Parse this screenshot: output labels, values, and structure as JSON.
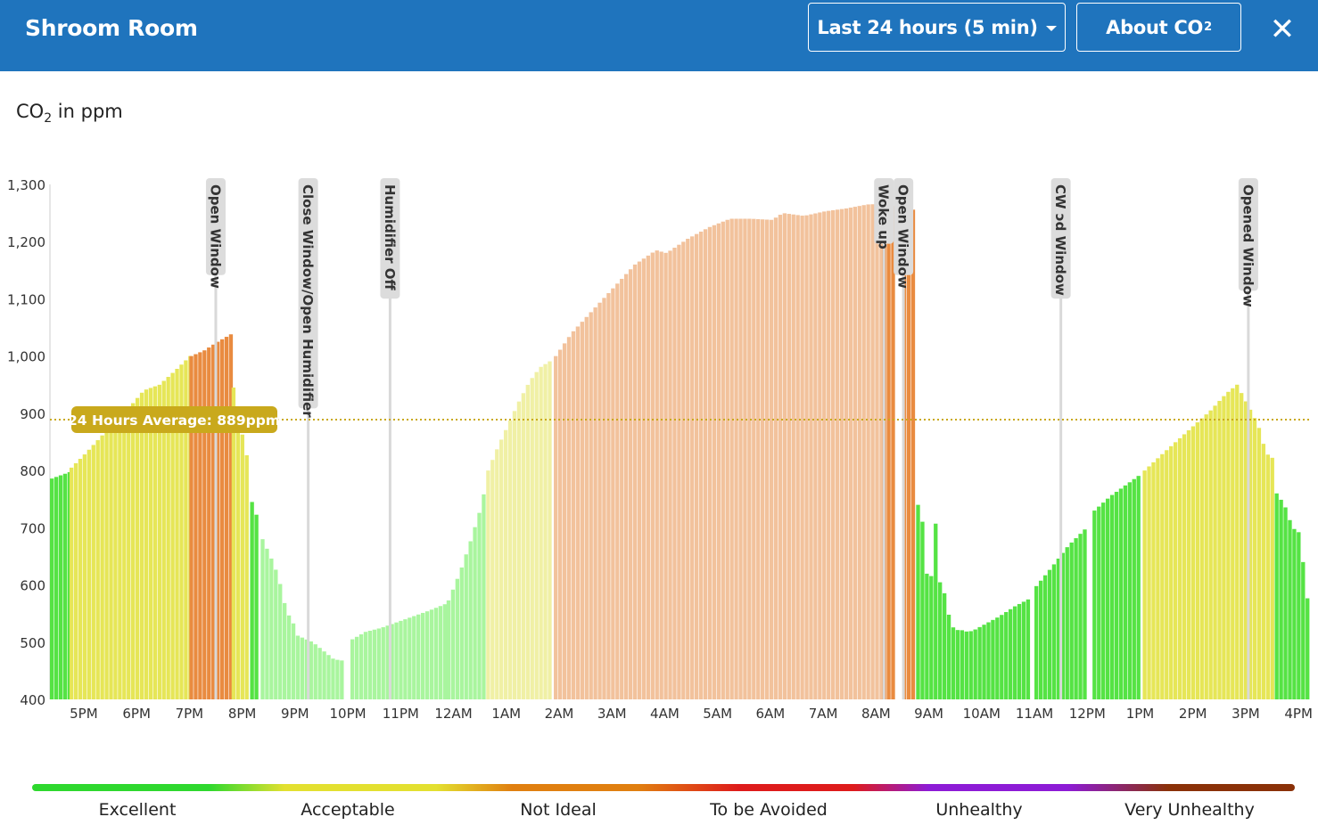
{
  "header": {
    "title": "Shroom Room",
    "range_label": "Last 24 hours (5 min)",
    "about_label": "About CO",
    "about_sub": "2",
    "close_symbol": "✕"
  },
  "unit_label": {
    "prefix": "CO",
    "sub": "2",
    "suffix": " in ppm"
  },
  "chart_data": {
    "type": "bar",
    "ylabel": "CO2 in ppm",
    "ylim": [
      400,
      1300
    ],
    "yticks": [
      400,
      500,
      600,
      700,
      800,
      900,
      1000,
      1100,
      1200,
      1300
    ],
    "ytick_labels": [
      "400",
      "500",
      "600",
      "700",
      "800",
      "900",
      "1,000",
      "1,100",
      "1,200",
      "1,300"
    ],
    "xlim": [
      16.36,
      40.2
    ],
    "xticks": [
      {
        "x": 17,
        "label": "5PM"
      },
      {
        "x": 18,
        "label": "6PM"
      },
      {
        "x": 19,
        "label": "7PM"
      },
      {
        "x": 20,
        "label": "8PM"
      },
      {
        "x": 21,
        "label": "9PM"
      },
      {
        "x": 22,
        "label": "10PM"
      },
      {
        "x": 23,
        "label": "11PM"
      },
      {
        "x": 24,
        "label": "12AM"
      },
      {
        "x": 25,
        "label": "1AM"
      },
      {
        "x": 26,
        "label": "2AM"
      },
      {
        "x": 27,
        "label": "3AM"
      },
      {
        "x": 28,
        "label": "4AM"
      },
      {
        "x": 29,
        "label": "5AM"
      },
      {
        "x": 30,
        "label": "6AM"
      },
      {
        "x": 31,
        "label": "7AM"
      },
      {
        "x": 32,
        "label": "8AM"
      },
      {
        "x": 33,
        "label": "9AM"
      },
      {
        "x": 34,
        "label": "10AM"
      },
      {
        "x": 35,
        "label": "11AM"
      },
      {
        "x": 36,
        "label": "12PM"
      },
      {
        "x": 37,
        "label": "1PM"
      },
      {
        "x": 38,
        "label": "2PM"
      },
      {
        "x": 39,
        "label": "3PM"
      },
      {
        "x": 40,
        "label": "4PM"
      }
    ],
    "average": {
      "value": 889,
      "label": "24 Hours Average: 889ppm",
      "color": "#c9a91c"
    },
    "colors": {
      "excellent": "#55e344",
      "excellent_faded": "#a9f59e",
      "acceptable": "#e6e657",
      "acceptable_faded": "#f0f0a5",
      "not_ideal": "#e98b40",
      "not_ideal_faded": "#f2c29c",
      "event_line": "#d9d9d9",
      "event_tag": "#dcdcdc"
    },
    "series": [
      {
        "style": "excellent",
        "points": [
          [
            16.36,
            786
          ],
          [
            16.72,
            798
          ]
        ]
      },
      {
        "style": "acceptable",
        "points": [
          [
            16.73,
            805
          ],
          [
            17.0,
            830
          ],
          [
            17.3,
            860
          ],
          [
            17.6,
            890
          ],
          [
            17.9,
            918
          ],
          [
            18.1,
            940
          ],
          [
            18.4,
            950
          ],
          [
            18.7,
            975
          ],
          [
            18.98,
            1000
          ]
        ]
      },
      {
        "style": "not_ideal",
        "points": [
          [
            19.0,
            1000
          ],
          [
            19.25,
            1010
          ],
          [
            19.5,
            1025
          ],
          [
            19.75,
            1038
          ]
        ]
      },
      {
        "style": "acceptable",
        "points": [
          [
            19.8,
            945
          ],
          [
            19.95,
            870
          ],
          [
            20.1,
            805
          ]
        ]
      },
      {
        "style": "excellent",
        "points": [
          [
            20.15,
            745
          ],
          [
            20.3,
            705
          ]
        ]
      },
      {
        "style": "excellent_faded",
        "points": [
          [
            20.35,
            680
          ],
          [
            20.5,
            650
          ],
          [
            20.65,
            615
          ],
          [
            20.8,
            555
          ],
          [
            20.95,
            530
          ],
          [
            21.0,
            512
          ],
          [
            21.3,
            500
          ],
          [
            21.5,
            485
          ],
          [
            21.7,
            470
          ],
          [
            21.85,
            468
          ]
        ]
      },
      {
        "style": "excellent_faded",
        "points": [
          [
            22.05,
            505
          ],
          [
            22.3,
            518
          ],
          [
            22.6,
            525
          ],
          [
            22.9,
            535
          ],
          [
            23.2,
            545
          ],
          [
            23.5,
            555
          ],
          [
            23.82,
            567
          ]
        ]
      },
      {
        "style": "excellent_faded",
        "points": [
          [
            23.87,
            573
          ],
          [
            24.1,
            625
          ],
          [
            24.3,
            680
          ],
          [
            24.5,
            740
          ],
          [
            24.58,
            780
          ]
        ]
      },
      {
        "style": "acceptable_faded",
        "points": [
          [
            24.62,
            800
          ],
          [
            24.8,
            840
          ],
          [
            25.0,
            880
          ],
          [
            25.2,
            920
          ],
          [
            25.4,
            955
          ],
          [
            25.6,
            980
          ],
          [
            25.86,
            995
          ]
        ]
      },
      {
        "style": "not_ideal_faded",
        "points": [
          [
            25.9,
            1000
          ],
          [
            26.2,
            1040
          ],
          [
            26.6,
            1080
          ],
          [
            27.0,
            1120
          ],
          [
            27.4,
            1160
          ],
          [
            27.8,
            1185
          ],
          [
            28.0,
            1180
          ],
          [
            28.4,
            1205
          ],
          [
            28.8,
            1225
          ],
          [
            29.2,
            1240
          ],
          [
            29.6,
            1240
          ],
          [
            30.0,
            1238
          ],
          [
            30.2,
            1250
          ],
          [
            30.6,
            1245
          ],
          [
            31.0,
            1253
          ],
          [
            31.4,
            1258
          ],
          [
            31.8,
            1265
          ],
          [
            32.1,
            1266
          ]
        ]
      },
      {
        "style": "not_ideal",
        "points": [
          [
            32.12,
            1265
          ],
          [
            32.3,
            1262
          ]
        ]
      },
      {
        "style": "not_ideal",
        "points": [
          [
            32.5,
            1260
          ],
          [
            32.7,
            1255
          ]
        ]
      },
      {
        "style": "excellent",
        "points": [
          [
            32.76,
            740
          ],
          [
            32.82,
            738
          ],
          [
            32.92,
            620
          ],
          [
            33.02,
            615
          ],
          [
            33.08,
            730
          ],
          [
            33.15,
            610
          ],
          [
            33.25,
            590
          ],
          [
            33.35,
            545
          ],
          [
            33.45,
            520
          ],
          [
            33.55,
            522
          ],
          [
            33.7,
            518
          ],
          [
            33.8,
            520
          ],
          [
            34.0,
            530
          ],
          [
            34.3,
            545
          ],
          [
            34.6,
            563
          ],
          [
            34.85,
            575
          ]
        ]
      },
      {
        "style": "excellent",
        "points": [
          [
            35.0,
            598
          ],
          [
            35.3,
            632
          ],
          [
            35.6,
            668
          ],
          [
            35.95,
            700
          ]
        ]
      },
      {
        "style": "excellent",
        "points": [
          [
            36.1,
            730
          ],
          [
            36.4,
            755
          ],
          [
            36.7,
            775
          ],
          [
            37.0,
            795
          ]
        ]
      },
      {
        "style": "acceptable",
        "points": [
          [
            37.05,
            800
          ],
          [
            37.4,
            830
          ],
          [
            37.7,
            855
          ],
          [
            38.0,
            880
          ],
          [
            38.3,
            905
          ],
          [
            38.6,
            935
          ],
          [
            38.8,
            950
          ],
          [
            39.0,
            915
          ],
          [
            39.2,
            880
          ],
          [
            39.35,
            830
          ],
          [
            39.5,
            820
          ]
        ]
      },
      {
        "style": "excellent",
        "points": [
          [
            39.55,
            760
          ],
          [
            39.7,
            740
          ],
          [
            39.85,
            700
          ],
          [
            40.0,
            690
          ],
          [
            40.1,
            590
          ],
          [
            40.2,
            550
          ]
        ]
      }
    ],
    "events": [
      {
        "x": 19.5,
        "label": "Open Window"
      },
      {
        "x": 21.25,
        "label": "Close Window/Open Humidifier"
      },
      {
        "x": 22.8,
        "label": "Humidifier Off"
      },
      {
        "x": 32.15,
        "label": "Woke up"
      },
      {
        "x": 32.52,
        "label": "Open Window"
      },
      {
        "x": 35.5,
        "label": "CW   ɔd Window"
      },
      {
        "x": 39.05,
        "label": "Opened Window"
      }
    ]
  },
  "scale": {
    "labels": [
      "Excellent",
      "Acceptable",
      "Not Ideal",
      "To be Avoided",
      "Unhealthy",
      "Very Unhealthy"
    ]
  }
}
